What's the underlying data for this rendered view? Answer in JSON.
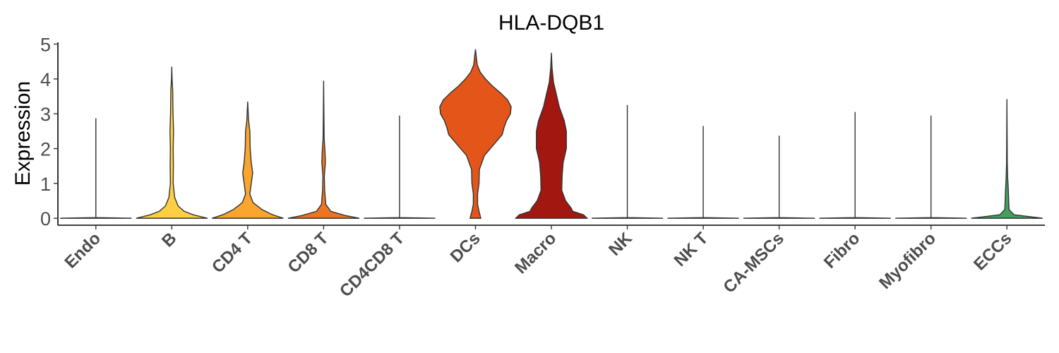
{
  "chart_data": {
    "type": "violin",
    "title": "HLA-DQB1",
    "xlabel": "",
    "ylabel": "Expression",
    "ylim": [
      -0.2,
      5.05
    ],
    "yticks": [
      0,
      1,
      2,
      3,
      4,
      5
    ],
    "grid": false,
    "legend": "none",
    "categories": [
      {
        "label": "Endo",
        "color": "#6a0000",
        "max": 2.87,
        "width": [
          [
            0,
            1
          ],
          [
            0.02,
            0
          ],
          [
            2.87,
            0
          ]
        ]
      },
      {
        "label": "B",
        "color": "#fecf44",
        "max": 4.35,
        "width": [
          [
            0,
            1
          ],
          [
            0.1,
            0.6
          ],
          [
            0.2,
            0.35
          ],
          [
            0.35,
            0.18
          ],
          [
            0.6,
            0.08
          ],
          [
            1.0,
            0.04
          ],
          [
            1.5,
            0.045
          ],
          [
            2.0,
            0.04
          ],
          [
            2.5,
            0.05
          ],
          [
            3.0,
            0.035
          ],
          [
            3.7,
            0.025
          ],
          [
            4.0,
            0.008
          ],
          [
            4.35,
            0
          ]
        ]
      },
      {
        "label": "CD4 T",
        "color": "#f9a52e",
        "max": 3.35,
        "width": [
          [
            0,
            1
          ],
          [
            0.1,
            0.7
          ],
          [
            0.25,
            0.4
          ],
          [
            0.45,
            0.15
          ],
          [
            0.7,
            0.06
          ],
          [
            1.0,
            0.1
          ],
          [
            1.3,
            0.14
          ],
          [
            1.6,
            0.1
          ],
          [
            2.0,
            0.07
          ],
          [
            2.5,
            0.06
          ],
          [
            2.8,
            0.025
          ],
          [
            3.35,
            0
          ]
        ]
      },
      {
        "label": "CD8 T",
        "color": "#ec7524",
        "max": 3.95,
        "width": [
          [
            0,
            1
          ],
          [
            0.08,
            0.6
          ],
          [
            0.2,
            0.2
          ],
          [
            0.4,
            0.06
          ],
          [
            0.8,
            0.03
          ],
          [
            1.2,
            0.02
          ],
          [
            1.6,
            0.05
          ],
          [
            1.9,
            0.04
          ],
          [
            2.3,
            0.015
          ],
          [
            3.0,
            0.008
          ],
          [
            3.95,
            0
          ]
        ]
      },
      {
        "label": "CD4CD8 T",
        "color": "#e46a20",
        "max": 2.95,
        "width": [
          [
            0,
            1
          ],
          [
            0.02,
            0
          ],
          [
            2.95,
            0
          ]
        ]
      },
      {
        "label": "DCs",
        "color": "#e4551a",
        "max": 4.85,
        "width": [
          [
            0,
            0.15
          ],
          [
            0.2,
            0.1
          ],
          [
            0.4,
            0.06
          ],
          [
            0.7,
            0.06
          ],
          [
            1.0,
            0.1
          ],
          [
            1.4,
            0.11
          ],
          [
            1.8,
            0.25
          ],
          [
            2.1,
            0.5
          ],
          [
            2.4,
            0.75
          ],
          [
            2.6,
            0.8
          ],
          [
            2.8,
            0.87
          ],
          [
            3.0,
            0.98
          ],
          [
            3.2,
            1.0
          ],
          [
            3.4,
            0.9
          ],
          [
            3.6,
            0.7
          ],
          [
            3.8,
            0.47
          ],
          [
            4.0,
            0.28
          ],
          [
            4.2,
            0.13
          ],
          [
            4.4,
            0.05
          ],
          [
            4.85,
            0
          ]
        ]
      },
      {
        "label": "Macro",
        "color": "#a31711",
        "max": 4.75,
        "width": [
          [
            0,
            1
          ],
          [
            0.1,
            0.9
          ],
          [
            0.2,
            0.6
          ],
          [
            0.3,
            0.55
          ],
          [
            0.5,
            0.4
          ],
          [
            0.8,
            0.29
          ],
          [
            1.2,
            0.3
          ],
          [
            1.6,
            0.33
          ],
          [
            2.0,
            0.42
          ],
          [
            2.5,
            0.42
          ],
          [
            2.8,
            0.36
          ],
          [
            3.2,
            0.22
          ],
          [
            3.6,
            0.13
          ],
          [
            3.9,
            0.06
          ],
          [
            4.3,
            0.02
          ],
          [
            4.75,
            0
          ]
        ]
      },
      {
        "label": "NK",
        "color": "#8e1510",
        "max": 3.25,
        "width": [
          [
            0,
            1
          ],
          [
            0.02,
            0
          ],
          [
            3.25,
            0
          ]
        ]
      },
      {
        "label": "NK T",
        "color": "#7a120e",
        "max": 2.65,
        "width": [
          [
            0,
            1
          ],
          [
            0.02,
            0
          ],
          [
            2.65,
            0
          ]
        ]
      },
      {
        "label": "CA-MSCs",
        "color": "#66100c",
        "max": 2.37,
        "width": [
          [
            0,
            1
          ],
          [
            0.02,
            0
          ],
          [
            2.37,
            0
          ]
        ]
      },
      {
        "label": "Fibro",
        "color": "#3a6b40",
        "max": 3.05,
        "width": [
          [
            0,
            1
          ],
          [
            0.02,
            0
          ],
          [
            3.05,
            0
          ]
        ]
      },
      {
        "label": "Myofibro",
        "color": "#3e8a50",
        "max": 2.95,
        "width": [
          [
            0,
            1
          ],
          [
            0.02,
            0
          ],
          [
            2.95,
            0
          ]
        ]
      },
      {
        "label": "ECCs",
        "color": "#44a060",
        "max": 3.42,
        "width": [
          [
            0,
            1
          ],
          [
            0.1,
            0.2
          ],
          [
            0.25,
            0.06
          ],
          [
            0.5,
            0.05
          ],
          [
            0.8,
            0.04
          ],
          [
            1.2,
            0.02
          ],
          [
            1.6,
            0.01
          ],
          [
            3.42,
            0
          ]
        ]
      }
    ]
  }
}
